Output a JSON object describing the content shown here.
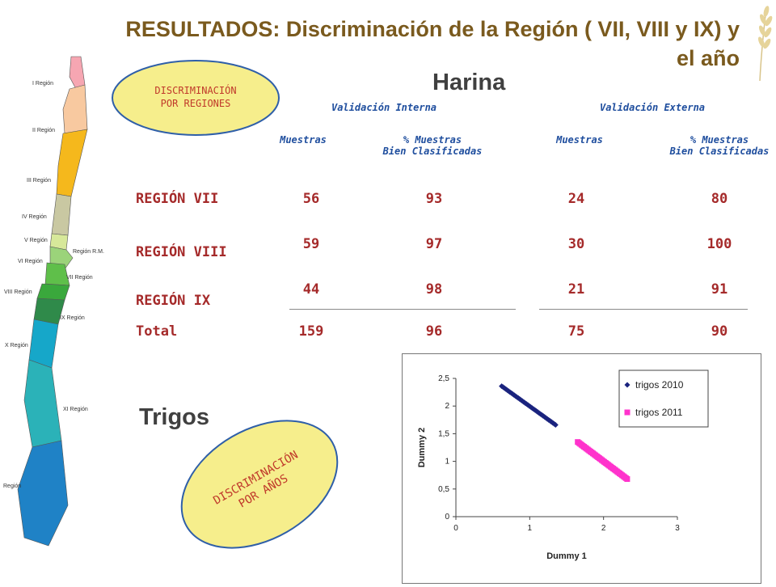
{
  "title": {
    "line1": "RESULTADOS: Discriminación de la Región ( VII, VIII y IX) y",
    "line2": "el año"
  },
  "map_labels": [
    "I Región",
    "II Región",
    "III Región",
    "IV Región",
    "V Región",
    "Región R.M.",
    "VI Región",
    "VII Región",
    "VIII Región",
    "IX Región",
    "X Región",
    "XI Región",
    "Región"
  ],
  "oval_regions": {
    "line1": "DISCRIMINACIÓN",
    "line2": "POR REGIONES"
  },
  "oval_years": {
    "line1": "DISCRIMINACIÓN",
    "line2": "POR AÑOS"
  },
  "harina": "Harina",
  "table": {
    "group_interna": "Validación Interna",
    "group_externa": "Validación Externa",
    "col_muestras": "Muestras",
    "col_pct_line1": "% Muestras",
    "col_pct_line2": "Bien Clasificadas",
    "rows": [
      {
        "label": "REGIÓN VII",
        "int_n": "56",
        "int_pct": "93",
        "ext_n": "24",
        "ext_pct": "80"
      },
      {
        "label": "REGIÓN VIII",
        "int_n": "59",
        "int_pct": "97",
        "ext_n": "30",
        "ext_pct": "100"
      },
      {
        "label": "REGIÓN IX",
        "int_n": "44",
        "int_pct": "98",
        "ext_n": "21",
        "ext_pct": "91"
      },
      {
        "label": "Total",
        "int_n": "159",
        "int_pct": "96",
        "ext_n": "75",
        "ext_pct": "90"
      }
    ]
  },
  "trigos": "Trigos",
  "chart_data": {
    "type": "scatter",
    "xlabel": "Dummy 1",
    "ylabel": "Dummy 2",
    "xlim": [
      0,
      3
    ],
    "ylim": [
      0,
      2.5
    ],
    "xticks": [
      "0",
      "1",
      "2",
      "3"
    ],
    "yticks": [
      "0",
      "0,5",
      "1",
      "1,5",
      "2",
      "2,5"
    ],
    "legend_position": "top-right",
    "series": [
      {
        "name": "trigos 2010",
        "color": "#1a237e",
        "marker": "diamond",
        "x_range": [
          0.62,
          1.35
        ],
        "y_range": [
          2.36,
          1.66
        ]
      },
      {
        "name": "trigos 2011",
        "color": "#ff33cc",
        "marker": "square",
        "x_range": [
          1.65,
          2.32
        ],
        "y_range": [
          1.35,
          0.68
        ]
      }
    ]
  }
}
